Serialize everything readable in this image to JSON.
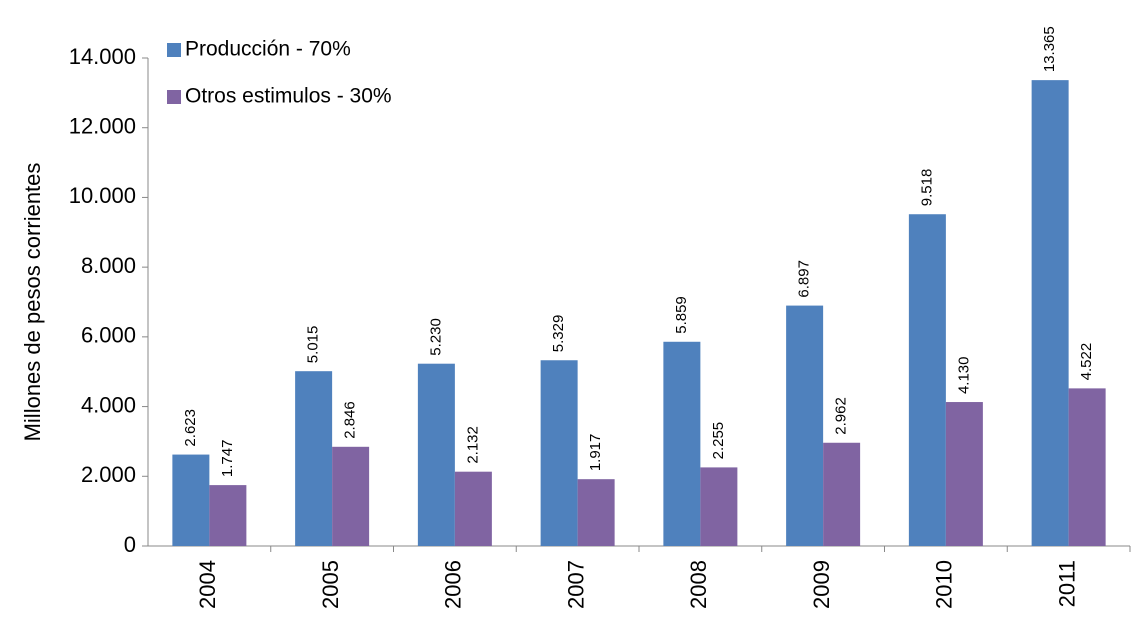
{
  "chart_data": {
    "type": "bar",
    "y_label": "Millones de pesos corrientes",
    "categories": [
      "2004",
      "2005",
      "2006",
      "2007",
      "2008",
      "2009",
      "2010",
      "2011"
    ],
    "series": [
      {
        "name": "Producción - 70%",
        "color": "#4f81bd",
        "values": [
          2623,
          5015,
          5230,
          5329,
          5859,
          6897,
          9518,
          13365
        ],
        "value_labels": [
          "2.623",
          "5.015",
          "5.230",
          "5.329",
          "5.859",
          "6.897",
          "9.518",
          "13.365"
        ]
      },
      {
        "name": "Otros estimulos - 30%",
        "color": "#8064a2",
        "values": [
          1747,
          2846,
          2132,
          1917,
          2255,
          2962,
          4130,
          4522
        ],
        "value_labels": [
          "1.747",
          "2.846",
          "2.132",
          "1.917",
          "2.255",
          "2.962",
          "4.130",
          "4.522"
        ]
      }
    ],
    "ylim": [
      0,
      14000
    ],
    "yticks": [
      0,
      {
        "value": 2000,
        "label": "2.000"
      },
      {
        "value": 4000,
        "label": "4.000"
      },
      {
        "value": 6000,
        "label": "6.000"
      },
      {
        "value": 8000,
        "label": "8.000"
      },
      {
        "value": 10000,
        "label": "10.000"
      },
      {
        "value": 12000,
        "label": "12.000"
      },
      {
        "value": 14000,
        "label": "14.000"
      }
    ],
    "legend": "top-left",
    "grid": false
  }
}
